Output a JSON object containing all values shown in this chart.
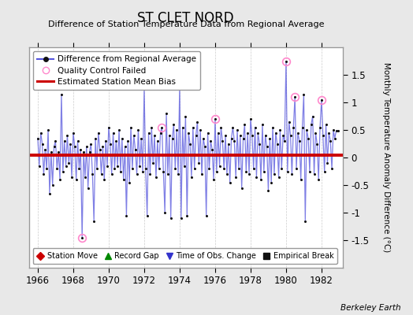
{
  "title": "ST CLET NORD",
  "subtitle": "Difference of Station Temperature Data from Regional Average",
  "ylabel_right": "Monthly Temperature Anomaly Difference (°C)",
  "xlim": [
    1965.5,
    1983.2
  ],
  "ylim": [
    -2.0,
    2.0
  ],
  "yticks": [
    -1.5,
    -1.0,
    -0.5,
    0.0,
    0.5,
    1.0,
    1.5
  ],
  "ytick_labels": [
    "-1.5",
    "-1",
    "-0.5",
    "0",
    "0.5",
    "1",
    "1.5"
  ],
  "xticks": [
    1966,
    1968,
    1970,
    1972,
    1974,
    1976,
    1978,
    1980,
    1982
  ],
  "mean_bias": 0.04,
  "background_color": "#e8e8e8",
  "plot_bg_color": "#ffffff",
  "line_color": "#5555dd",
  "line_alpha": 0.75,
  "dot_color": "#111111",
  "bias_color": "#cc0000",
  "qc_color": "#ff88cc",
  "footer": "Berkeley Earth",
  "legend1_items": [
    {
      "label": "Difference from Regional Average"
    },
    {
      "label": "Quality Control Failed"
    },
    {
      "label": "Estimated Station Mean Bias"
    }
  ],
  "legend2_items": [
    {
      "label": "Station Move",
      "color": "#cc0000",
      "marker": "D"
    },
    {
      "label": "Record Gap",
      "color": "#008800",
      "marker": "^"
    },
    {
      "label": "Time of Obs. Change",
      "color": "#3333cc",
      "marker": "v"
    },
    {
      "label": "Empirical Break",
      "color": "#111111",
      "marker": "s"
    }
  ],
  "seed": 42
}
